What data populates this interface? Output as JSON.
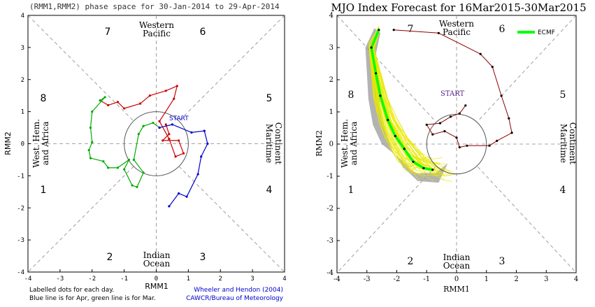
{
  "left_panel": {
    "title": "(RMM1,RMM2) phase space for 30-Jan-2014 to 29-Apr-2014",
    "xlabel": "RMM1",
    "ylabel": "RMM2",
    "ticks": [
      "-4",
      "-3",
      "-2",
      "-1",
      "0",
      "1",
      "2",
      "3",
      "4"
    ],
    "footer_left": [
      "Labelled dots for each day.",
      "Blue line is for Apr, green line is for Mar."
    ],
    "footer_right": [
      "Wheeler and Hendon (2004)",
      "CAWCR/Bureau of Meteorology"
    ],
    "start_label": "START",
    "region_labels": {
      "top": [
        "Western",
        "Pacific"
      ],
      "bottom": [
        "Indian",
        "Ocean"
      ],
      "left": [
        "West. Hem.",
        "and Africa"
      ],
      "right": [
        "Maritime",
        "Continent"
      ]
    },
    "phase_numbers": [
      "7",
      "6",
      "8",
      "5",
      "1",
      "4",
      "2",
      "3"
    ]
  },
  "right_panel": {
    "title": "MJO Index Forecast for 16Mar2015-30Mar2015",
    "xlabel": "RMM1",
    "ylabel": "RMM2",
    "ticks": [
      "-4",
      "-3",
      "-2",
      "-1",
      "0",
      "1",
      "2",
      "3",
      "4"
    ],
    "legend": "ECMF",
    "start_label": "START",
    "region_labels": {
      "top": [
        "Western",
        "Pacific"
      ],
      "bottom": [
        "Indian",
        "Ocean"
      ],
      "left": [
        "West. Hem.",
        "and Africa"
      ],
      "right": [
        "Maritime",
        "Continent"
      ]
    },
    "phase_numbers": [
      "7",
      "6",
      "8",
      "5",
      "1",
      "4",
      "2",
      "3"
    ]
  },
  "colors": {
    "jan_feb": "#cc0000",
    "mar": "#00aa00",
    "apr": "#0000cc",
    "forecast_obs": "#8b0000",
    "analysis": "#552288",
    "ensemble": "#e8e800",
    "ensemble_mean": "#00ff00",
    "spread": "#999999"
  },
  "chart_data": [
    {
      "type": "line",
      "title": "(RMM1,RMM2) phase space for 30-Jan-2014 to 29-Apr-2014",
      "xlabel": "RMM1",
      "ylabel": "RMM2",
      "xlim": [
        -4,
        4
      ],
      "ylim": [
        -4,
        4
      ],
      "series": [
        {
          "values": [
            [
              0.3,
              0.6
            ],
            [
              0.4,
              0.3
            ],
            [
              0.2,
              0.1
            ],
            [
              0.7,
              0.1
            ],
            [
              0.85,
              -0.3
            ],
            [
              0.6,
              -0.4
            ],
            [
              0.4,
              0.15
            ],
            [
              0.1,
              0.7
            ],
            [
              0.55,
              1.4
            ],
            [
              0.65,
              1.8
            ],
            [
              0.3,
              1.65
            ],
            [
              -0.2,
              1.5
            ],
            [
              -0.5,
              1.25
            ],
            [
              -1.0,
              1.1
            ],
            [
              -1.2,
              1.3
            ],
            [
              -1.5,
              1.2
            ],
            [
              -1.75,
              1.35
            ]
          ]
        },
        {
          "values": [
            [
              -1.75,
              1.35
            ],
            [
              -1.6,
              1.45
            ],
            [
              -2.0,
              1.0
            ],
            [
              -2.05,
              0.5
            ],
            [
              -2.0,
              0.05
            ],
            [
              -2.1,
              -0.2
            ],
            [
              -2.05,
              -0.45
            ],
            [
              -1.65,
              -0.55
            ],
            [
              -1.5,
              -0.75
            ],
            [
              -1.2,
              -0.75
            ],
            [
              -0.85,
              -0.5
            ],
            [
              -1.0,
              -0.8
            ],
            [
              -0.75,
              -1.3
            ],
            [
              -0.6,
              -1.35
            ],
            [
              -0.4,
              -0.9
            ],
            [
              -0.7,
              -0.5
            ],
            [
              -0.55,
              0.3
            ],
            [
              -0.4,
              0.55
            ],
            [
              -0.1,
              0.65
            ],
            [
              0.1,
              0.5
            ]
          ]
        },
        {
          "values": [
            [
              0.1,
              0.5
            ],
            [
              0.5,
              0.6
            ],
            [
              1.1,
              0.35
            ],
            [
              1.5,
              0.4
            ],
            [
              1.6,
              0.0
            ],
            [
              1.4,
              -0.4
            ],
            [
              1.3,
              -0.95
            ],
            [
              0.95,
              -1.65
            ],
            [
              0.7,
              -1.55
            ],
            [
              0.4,
              -1.95
            ]
          ]
        }
      ]
    },
    {
      "type": "line",
      "title": "MJO Index Forecast for 16Mar2015-30Mar2015",
      "xlabel": "RMM1",
      "ylabel": "RMM2",
      "xlim": [
        -4,
        4
      ],
      "ylim": [
        -4,
        4
      ],
      "series": [
        {
          "values": [
            [
              0.3,
              1.2
            ],
            [
              0.1,
              0.95
            ],
            [
              -0.2,
              0.85
            ],
            [
              -0.55,
              0.65
            ],
            [
              -1.0,
              0.6
            ],
            [
              -0.8,
              0.3
            ],
            [
              -0.4,
              0.4
            ],
            [
              0.0,
              0.2
            ],
            [
              0.1,
              -0.1
            ],
            [
              0.35,
              -0.05
            ],
            [
              1.1,
              -0.05
            ],
            [
              1.35,
              0.1
            ],
            [
              1.85,
              0.35
            ],
            [
              1.75,
              0.8
            ],
            [
              1.5,
              1.5
            ],
            [
              1.2,
              2.4
            ],
            [
              0.8,
              2.8
            ],
            [
              -0.6,
              3.45
            ],
            [
              -2.1,
              3.55
            ]
          ]
        },
        {
          "name": "ECMF",
          "values": [
            [
              -2.6,
              3.55
            ],
            [
              -2.85,
              3.0
            ],
            [
              -2.7,
              2.2
            ],
            [
              -2.55,
              1.5
            ],
            [
              -2.3,
              0.75
            ],
            [
              -2.05,
              0.25
            ],
            [
              -1.75,
              -0.15
            ],
            [
              -1.45,
              -0.55
            ],
            [
              -1.1,
              -0.75
            ],
            [
              -0.8,
              -0.8
            ]
          ]
        }
      ]
    }
  ]
}
